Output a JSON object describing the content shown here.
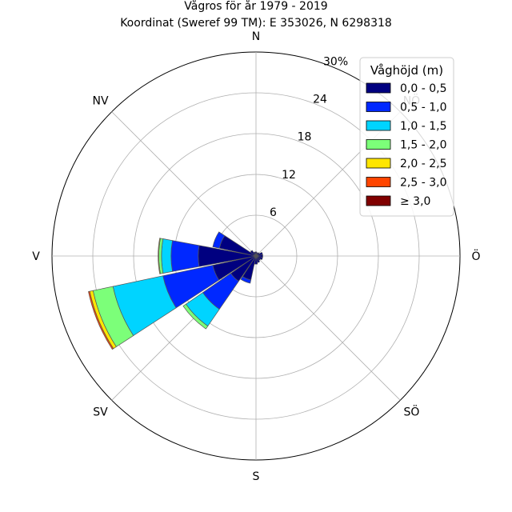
{
  "chart_data": {
    "type": "wind-rose",
    "title_line1": "Vågros för år 1979 - 2019",
    "title_line2": "Koordinat (Sweref 99 TM): E 353026, N 6298318",
    "radial_ticks": [
      "6",
      "12",
      "18",
      "24",
      "30%"
    ],
    "radial_tick_values": [
      6,
      12,
      18,
      24,
      30
    ],
    "rmax": 30,
    "direction_labels": [
      {
        "angle": 0,
        "label": "N"
      },
      {
        "angle": 45,
        "label": "NÖ"
      },
      {
        "angle": 90,
        "label": "Ö"
      },
      {
        "angle": 135,
        "label": "SÖ"
      },
      {
        "angle": 180,
        "label": "S"
      },
      {
        "angle": 225,
        "label": "SV"
      },
      {
        "angle": 270,
        "label": "V"
      },
      {
        "angle": 315,
        "label": "NV"
      }
    ],
    "legend_title": "Våghöjd (m)",
    "bins": [
      "0,0 - 0,5",
      "0,5 - 1,0",
      "1,0 - 1,5",
      "1,5 - 2,0",
      "2,0 - 2,5",
      "2,5 - 3,0",
      "≥ 3,0"
    ],
    "colors": [
      "#000080",
      "#0028ff",
      "#00d4ff",
      "#7cff79",
      "#ffe600",
      "#ff4500",
      "#800000"
    ],
    "sectors": [
      {
        "direction": 0,
        "values": [
          0.6,
          0.0,
          0,
          0,
          0,
          0,
          0
        ]
      },
      {
        "direction": 22.5,
        "values": [
          0.5,
          0.0,
          0,
          0,
          0,
          0,
          0
        ]
      },
      {
        "direction": 45,
        "values": [
          0.6,
          0.0,
          0,
          0,
          0,
          0,
          0
        ]
      },
      {
        "direction": 67.5,
        "values": [
          1.0,
          0.0,
          0,
          0,
          0,
          0,
          0
        ]
      },
      {
        "direction": 90,
        "values": [
          1.0,
          0.0,
          0,
          0,
          0,
          0,
          0
        ]
      },
      {
        "direction": 112.5,
        "values": [
          1.0,
          0.0,
          0,
          0,
          0,
          0,
          0
        ]
      },
      {
        "direction": 135,
        "values": [
          0.8,
          0.0,
          0,
          0,
          0,
          0,
          0
        ]
      },
      {
        "direction": 157.5,
        "values": [
          1.0,
          0.0,
          0,
          0,
          0,
          0,
          0
        ]
      },
      {
        "direction": 180,
        "values": [
          1.2,
          0.0,
          0,
          0,
          0,
          0,
          0
        ]
      },
      {
        "direction": 202.5,
        "values": [
          3.6,
          0.5,
          0,
          0,
          0,
          0,
          0
        ]
      },
      {
        "direction": 225,
        "values": [
          4.5,
          5.0,
          3.0,
          0.5,
          0,
          0,
          0
        ]
      },
      {
        "direction": 247.5,
        "values": [
          6.5,
          7.5,
          7.5,
          3.0,
          0.5,
          0.2,
          0
        ]
      },
      {
        "direction": 270,
        "values": [
          8.5,
          4.0,
          1.4,
          0.4,
          0.1,
          0,
          0
        ]
      },
      {
        "direction": 292.5,
        "values": [
          5.5,
          1.0,
          0,
          0,
          0,
          0,
          0
        ]
      },
      {
        "direction": 315,
        "values": [
          1.0,
          0.0,
          0,
          0,
          0,
          0,
          0
        ]
      },
      {
        "direction": 337.5,
        "values": [
          0.6,
          0.0,
          0,
          0,
          0,
          0,
          0
        ]
      }
    ]
  }
}
